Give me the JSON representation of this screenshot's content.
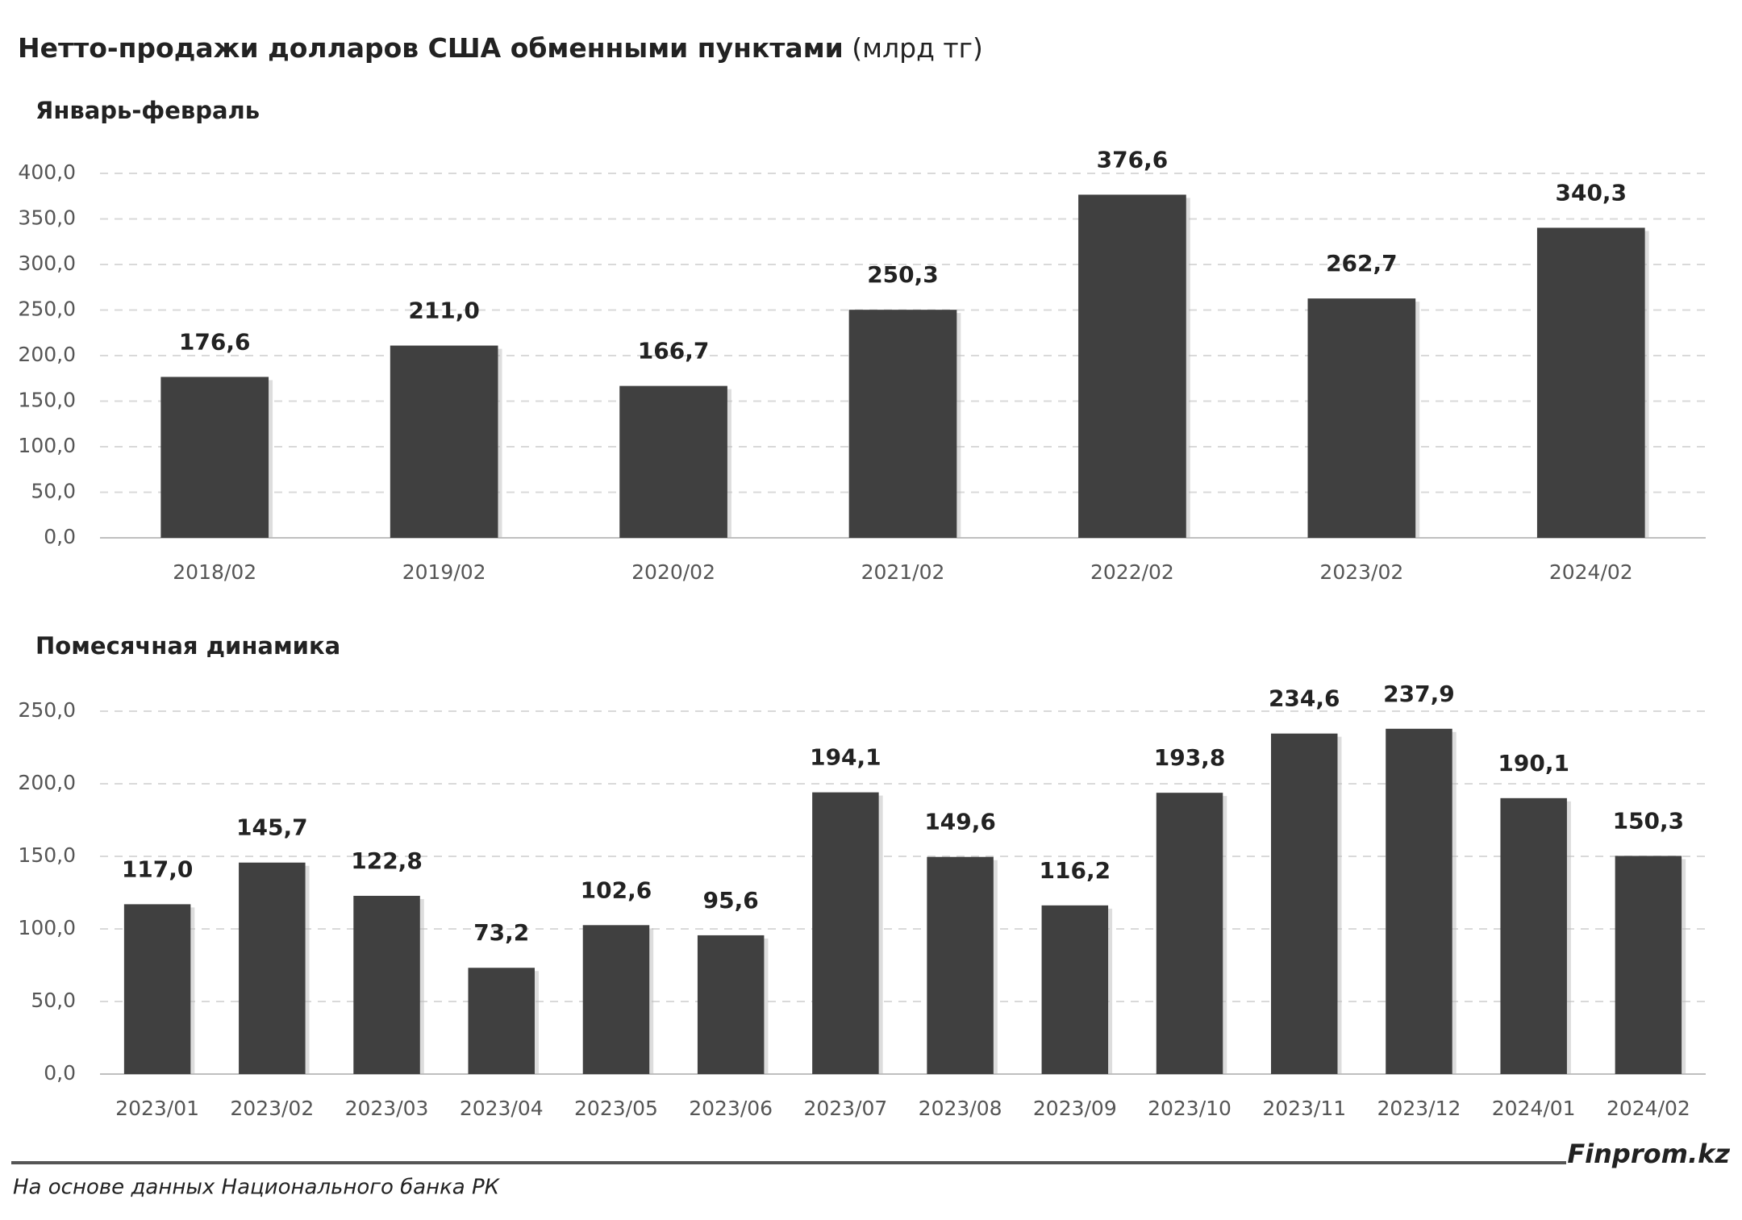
{
  "title_main": "Нетто-продажи долларов США обменными пунктами",
  "title_unit": "(млрд тг)",
  "chart_data": [
    {
      "type": "bar",
      "subtitle": "Январь-февраль",
      "categories": [
        "2018/02",
        "2019/02",
        "2020/02",
        "2021/02",
        "2022/02",
        "2023/02",
        "2024/02"
      ],
      "values": [
        176.6,
        211.0,
        166.7,
        250.3,
        376.6,
        262.7,
        340.3
      ],
      "value_labels": [
        "176,6",
        "211,0",
        "166,7",
        "250,3",
        "376,6",
        "262,7",
        "340,3"
      ],
      "color": "#404040",
      "ylim": [
        0,
        400
      ],
      "yticks": [
        {
          "value": 0,
          "label": "0,0"
        },
        {
          "value": 50,
          "label": "50,0"
        },
        {
          "value": 100,
          "label": "100,0"
        },
        {
          "value": 150,
          "label": "150,0"
        },
        {
          "value": 200,
          "label": "200,0"
        },
        {
          "value": 250,
          "label": "250,0"
        },
        {
          "value": 300,
          "label": "300,0"
        },
        {
          "value": 350,
          "label": "350,0"
        },
        {
          "value": 400,
          "label": "400,0"
        }
      ],
      "grid": true
    },
    {
      "type": "bar",
      "subtitle": "Помесячная динамика",
      "categories": [
        "2023/01",
        "2023/02",
        "2023/03",
        "2023/04",
        "2023/05",
        "2023/06",
        "2023/07",
        "2023/08",
        "2023/09",
        "2023/10",
        "2023/11",
        "2023/12",
        "2024/01",
        "2024/02"
      ],
      "values": [
        117.0,
        145.7,
        122.8,
        73.2,
        102.6,
        95.6,
        194.1,
        149.6,
        116.2,
        193.8,
        234.6,
        237.9,
        190.1,
        150.3
      ],
      "value_labels": [
        "117,0",
        "145,7",
        "122,8",
        "73,2",
        "102,6",
        "95,6",
        "194,1",
        "149,6",
        "116,2",
        "193,8",
        "234,6",
        "237,9",
        "190,1",
        "150,3"
      ],
      "color": "#404040",
      "ylim": [
        0,
        250
      ],
      "yticks": [
        {
          "value": 0,
          "label": "0,0"
        },
        {
          "value": 50,
          "label": "50,0"
        },
        {
          "value": 100,
          "label": "100,0"
        },
        {
          "value": 150,
          "label": "150,0"
        },
        {
          "value": 200,
          "label": "200,0"
        },
        {
          "value": 250,
          "label": "250,0"
        }
      ],
      "grid": true
    }
  ],
  "source": "На основе данных Национального банка РК",
  "brand": "Finprom.kz"
}
